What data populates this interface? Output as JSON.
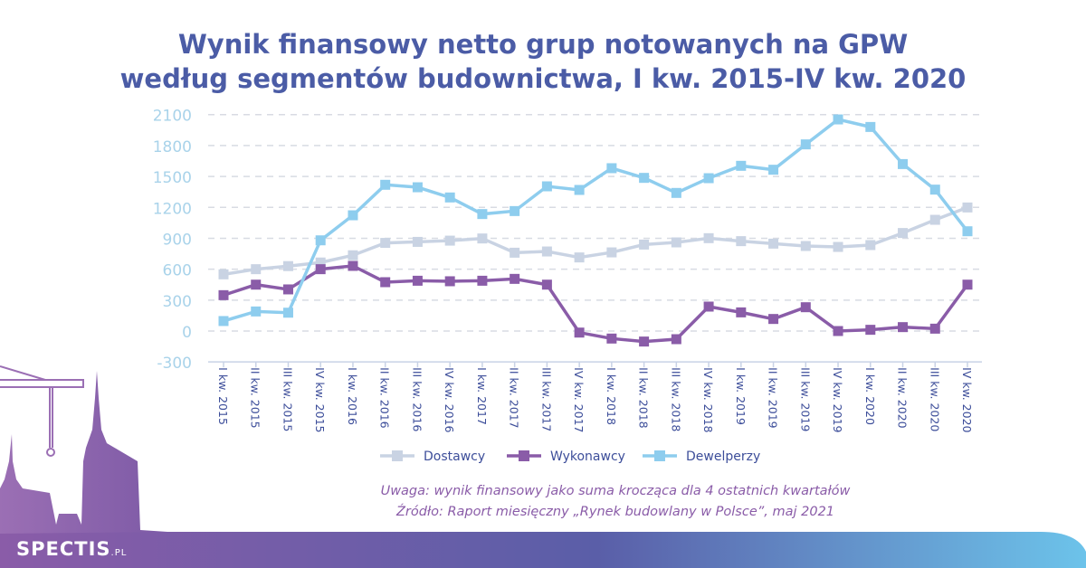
{
  "title_line1": "Wynik finansowy netto grup notowanych na GPW",
  "title_line2": "według segmentów budownictwa, I kw. 2015-IV kw. 2020",
  "note": "Uwaga: wynik finansowy jako suma krocząca dla 4 ostatnich kwartałów",
  "source": "Źródło: Raport miesięczny „Rynek budowlany w Polsce”, maj 2021",
  "logo": {
    "main": "SPECTIS",
    "suffix": ".PL"
  },
  "chart_data": {
    "type": "line",
    "title": "Wynik finansowy netto grup notowanych na GPW według segmentów budownictwa, I kw. 2015-IV kw. 2020",
    "ylim": [
      -300,
      2100
    ],
    "yticks": [
      "2100",
      "1800",
      "1500",
      "1200",
      "900",
      "600",
      "300",
      "0",
      "-300"
    ],
    "grid": true,
    "legend": "bottom",
    "categories": [
      "I kw. 2015",
      "II kw. 2015",
      "III kw. 2015",
      "IV kw. 2015",
      "I kw. 2016",
      "II kw. 2016",
      "III kw. 2016",
      "IV kw. 2016",
      "I kw. 2017",
      "II kw. 2017",
      "III kw. 2017",
      "IV kw. 2017",
      "I kw. 2018",
      "II kw. 2018",
      "III kw. 2018",
      "IV kw. 2018",
      "I kw. 2019",
      "II kw. 2019",
      "III kw. 2019",
      "IV kw. 2019",
      "I kw. 2020",
      "II kw. 2020",
      "III kw. 2020",
      "IV kw. 2020"
    ],
    "series": [
      {
        "name": "Dostawcy",
        "color": "#c9d3e3",
        "values": [
          550,
          600,
          630,
          665,
          735,
          855,
          865,
          877,
          898,
          760,
          772,
          714,
          763,
          839,
          860,
          901,
          872,
          848,
          825,
          816,
          834,
          951,
          1079,
          1199
        ]
      },
      {
        "name": "Wykonawcy",
        "color": "#8a5ca8",
        "values": [
          348,
          450,
          404,
          600,
          632,
          474,
          488,
          483,
          488,
          506,
          450,
          -15,
          -73,
          -102,
          -79,
          237,
          181,
          117,
          231,
          0,
          12,
          38,
          23,
          450
        ]
      },
      {
        "name": "Dewelperzy",
        "color": "#8ecdee",
        "values": [
          97,
          190,
          178,
          880,
          1123,
          1419,
          1395,
          1296,
          1135,
          1164,
          1404,
          1369,
          1580,
          1486,
          1340,
          1483,
          1603,
          1565,
          1811,
          2053,
          1980,
          1620,
          1372,
          968
        ]
      }
    ]
  }
}
